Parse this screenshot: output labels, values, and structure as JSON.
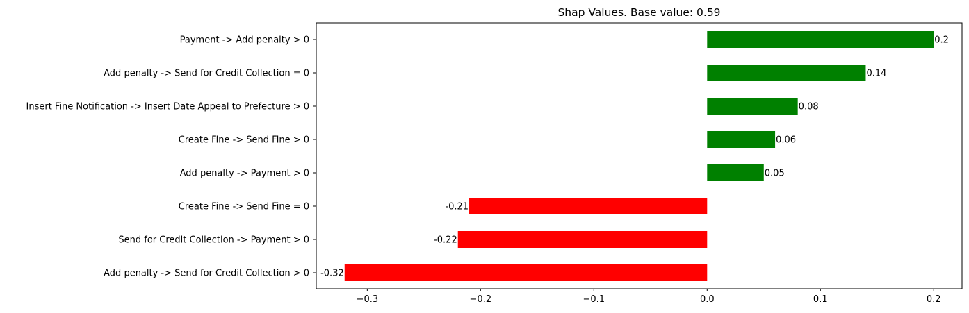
{
  "chart_data": {
    "type": "bar",
    "orientation": "horizontal",
    "title": "Shap Values. Base value: 0.59",
    "xlabel": "",
    "ylabel": "",
    "xlim": [
      -0.345,
      0.225
    ],
    "x_ticks": [
      -0.3,
      -0.2,
      -0.1,
      0.0,
      0.1,
      0.2
    ],
    "x_tick_labels": [
      "−0.3",
      "−0.2",
      "−0.1",
      "0.0",
      "0.1",
      "0.2"
    ],
    "grid": false,
    "legend": "none",
    "positive_color": "#008000",
    "negative_color": "#ff0000",
    "categories": [
      "Payment -> Add penalty > 0",
      "Add penalty -> Send for Credit Collection = 0",
      "Insert Fine Notification -> Insert Date Appeal to Prefecture > 0",
      "Create Fine -> Send Fine > 0",
      "Add penalty -> Payment > 0",
      "Create Fine -> Send Fine = 0",
      "Send for Credit Collection -> Payment > 0",
      "Add penalty -> Send for Credit Collection > 0"
    ],
    "values": [
      0.2,
      0.14,
      0.08,
      0.06,
      0.05,
      -0.21,
      -0.22,
      -0.32
    ],
    "value_labels": [
      "0.2",
      "0.14",
      "0.08",
      "0.06",
      "0.05",
      "-0.21",
      "-0.22",
      "-0.32"
    ]
  }
}
